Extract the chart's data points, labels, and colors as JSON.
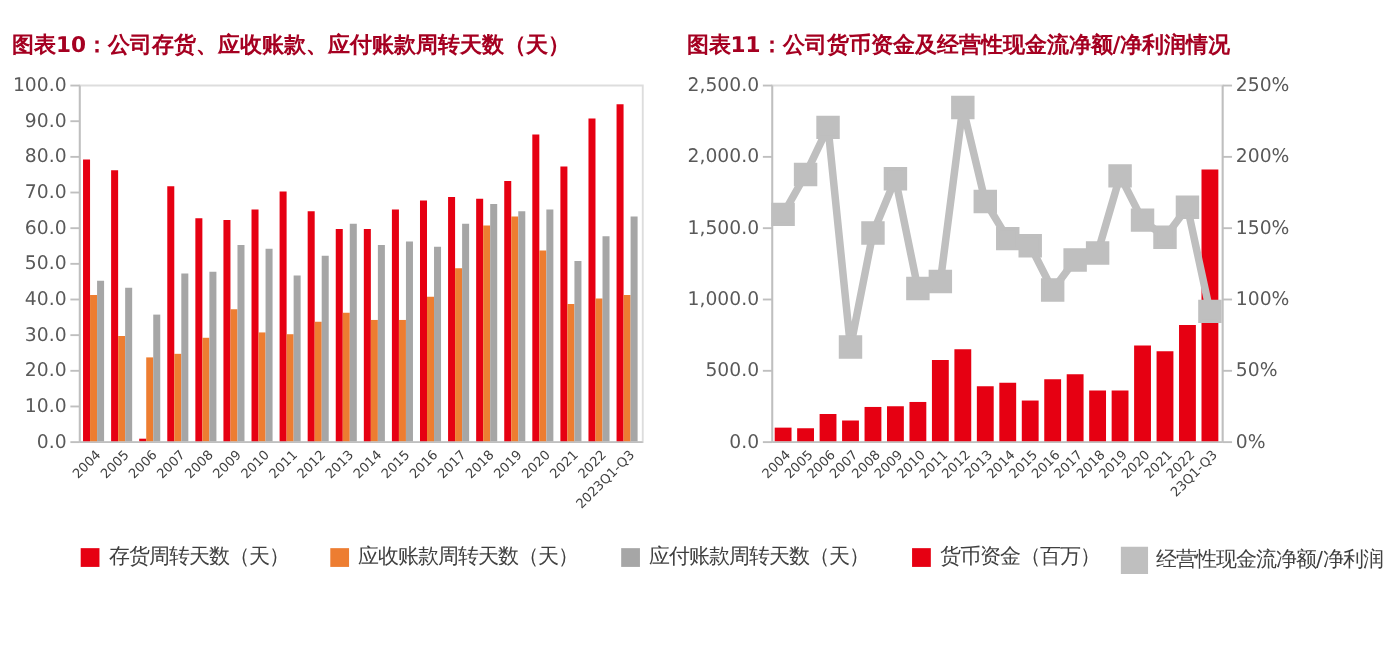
{
  "chart_data": [
    {
      "type": "bar",
      "title": "图表10：公司存货、应收账款、应付账款周转天数（天）",
      "categories": [
        "2004",
        "2005",
        "2006",
        "2007",
        "2008",
        "2009",
        "2010",
        "2011",
        "2012",
        "2013",
        "2014",
        "2015",
        "2016",
        "2017",
        "2018",
        "2019",
        "2020",
        "2021",
        "2022",
        "2023Q1-Q3"
      ],
      "series": [
        {
          "name": "存货周转天数（天）",
          "color": "#e60012",
          "values": [
            79,
            76,
            0.7,
            71.5,
            62.5,
            62,
            65,
            70,
            64.5,
            59.5,
            59.5,
            65,
            67.5,
            68.5,
            68,
            73,
            86,
            77,
            90.5,
            94.5
          ]
        },
        {
          "name": "应收账款周转天数（天）",
          "color": "#ed7d31",
          "values": [
            41,
            29.5,
            23.5,
            24.5,
            29,
            37,
            30.5,
            30,
            33.5,
            36,
            34,
            34,
            40.5,
            48.5,
            60.5,
            63,
            53.5,
            38.5,
            40,
            41
          ]
        },
        {
          "name": "应付账款周转天数（天）",
          "color": "#a6a6a6",
          "values": [
            45,
            43,
            35.5,
            47,
            47.5,
            55,
            54,
            46.5,
            52,
            61,
            55,
            56,
            54.5,
            61,
            66.5,
            64.5,
            65,
            50.5,
            57.5,
            63
          ]
        }
      ],
      "ylim": [
        0,
        100
      ],
      "yticks": [
        {
          "value": 0,
          "label": "0.0"
        },
        {
          "value": 10,
          "label": "10.0"
        },
        {
          "value": 20,
          "label": "20.0"
        },
        {
          "value": 30,
          "label": "30.0"
        },
        {
          "value": 40,
          "label": "40.0"
        },
        {
          "value": 50,
          "label": "50.0"
        },
        {
          "value": 60,
          "label": "60.0"
        },
        {
          "value": 70,
          "label": "70.0"
        },
        {
          "value": 80,
          "label": "80.0"
        },
        {
          "value": 90,
          "label": "90.0"
        },
        {
          "value": 100,
          "label": "100.0"
        }
      ],
      "legend": "bottom",
      "grid": false
    },
    {
      "type": "bar",
      "title": "图表11：公司货币资金及经营性现金流净额/净利润情况",
      "categories": [
        "2004",
        "2005",
        "2006",
        "2007",
        "2008",
        "2009",
        "2010",
        "2011",
        "2012",
        "2013",
        "2014",
        "2015",
        "2016",
        "2017",
        "2018",
        "2019",
        "2020",
        "2021",
        "2022",
        "23Q1-Q3"
      ],
      "series": [
        {
          "name": "货币资金（百万）",
          "type": "bar",
          "color": "#e60012",
          "values": [
            95,
            90,
            190,
            145,
            240,
            245,
            275,
            570,
            645,
            385,
            410,
            285,
            435,
            470,
            355,
            355,
            670,
            630,
            815,
            1905
          ]
        },
        {
          "name": "经营性现金流净额/净利润",
          "type": "line",
          "axis": "y2",
          "color": "#bfbfbf",
          "marker": "square",
          "values": [
            159,
            187,
            220,
            66,
            146,
            184,
            107,
            112,
            234,
            168,
            142,
            137,
            106,
            127,
            132,
            186,
            155,
            143,
            164,
            91
          ]
        }
      ],
      "ylim": [
        0,
        2500
      ],
      "yticks": [
        {
          "value": 0,
          "label": "0.0"
        },
        {
          "value": 500,
          "label": "500.0"
        },
        {
          "value": 1000,
          "label": "1,000.0"
        },
        {
          "value": 1500,
          "label": "1,500.0"
        },
        {
          "value": 2000,
          "label": "2,000.0"
        },
        {
          "value": 2500,
          "label": "2,500.0"
        }
      ],
      "y2lim": [
        0,
        250
      ],
      "y2ticks": [
        {
          "value": 0,
          "label": "0%"
        },
        {
          "value": 50,
          "label": "50%"
        },
        {
          "value": 100,
          "label": "100%"
        },
        {
          "value": 150,
          "label": "150%"
        },
        {
          "value": 200,
          "label": "200%"
        },
        {
          "value": 250,
          "label": "250%"
        }
      ],
      "legend": "bottom",
      "grid": false
    }
  ]
}
